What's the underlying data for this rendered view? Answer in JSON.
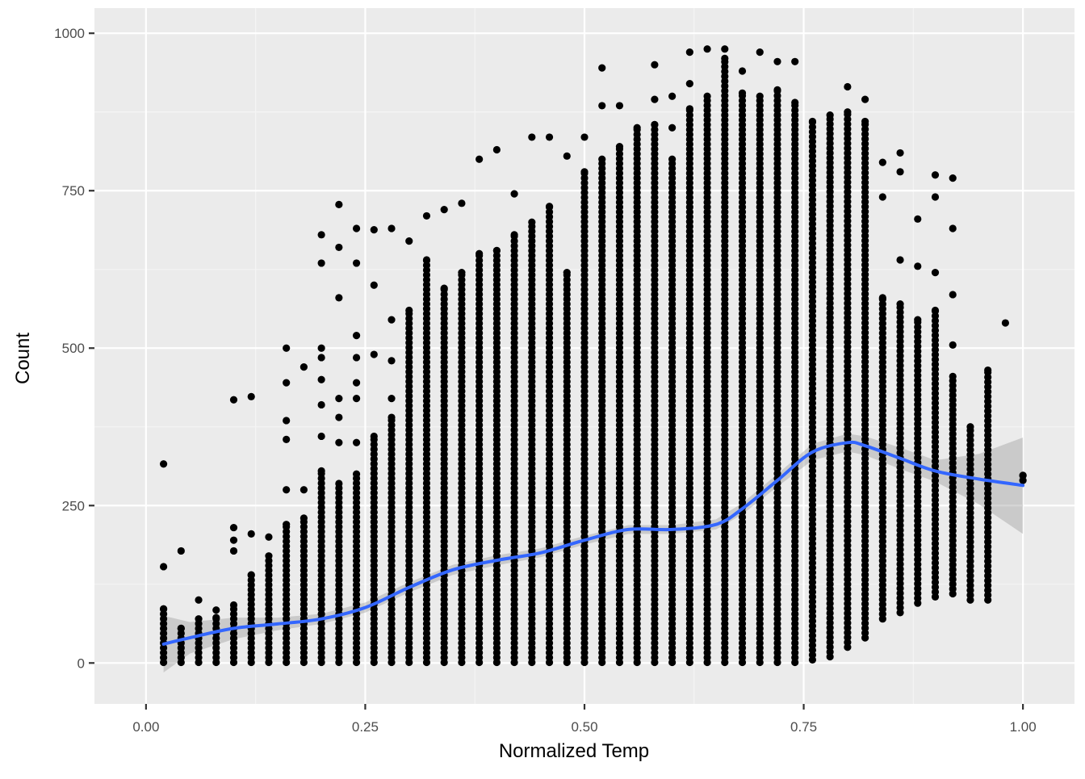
{
  "chart_data": {
    "type": "scatter",
    "title": "",
    "xlabel": "Normalized Temp",
    "ylabel": "Count",
    "xlim": [
      -0.0588,
      1.0588
    ],
    "ylim": [
      -65,
      1040
    ],
    "x_ticks": [
      0.0,
      0.25,
      0.5,
      0.75,
      1.0
    ],
    "x_tick_labels": [
      "0.00",
      "0.25",
      "0.50",
      "0.75",
      "1.00"
    ],
    "y_ticks": [
      0,
      250,
      500,
      750,
      1000
    ],
    "y_tick_labels": [
      "0",
      "250",
      "500",
      "750",
      "1000"
    ],
    "grid": true,
    "legend": "none",
    "colors": {
      "panel_background": "#ebebeb",
      "grid_major": "#ffffff",
      "grid_minor": "#f5f5f5",
      "points": "#000000",
      "smooth_line": "#3366ff",
      "confidence_band": "#999999"
    },
    "point_columns": [
      {
        "x": 0.02,
        "ymin": 1,
        "ymax": 86,
        "outliers": [
          153,
          316
        ]
      },
      {
        "x": 0.04,
        "ymin": 1,
        "ymax": 55,
        "outliers": [
          178
        ]
      },
      {
        "x": 0.06,
        "ymin": 1,
        "ymax": 70,
        "outliers": [
          100
        ]
      },
      {
        "x": 0.08,
        "ymin": 1,
        "ymax": 72,
        "outliers": [
          84
        ]
      },
      {
        "x": 0.1,
        "ymin": 1,
        "ymax": 92,
        "outliers": [
          178,
          195,
          215,
          418
        ]
      },
      {
        "x": 0.12,
        "ymin": 1,
        "ymax": 140,
        "outliers": [
          205,
          423
        ]
      },
      {
        "x": 0.14,
        "ymin": 1,
        "ymax": 170,
        "outliers": [
          200
        ]
      },
      {
        "x": 0.16,
        "ymin": 1,
        "ymax": 220,
        "outliers": [
          275,
          355,
          385,
          445,
          500
        ]
      },
      {
        "x": 0.18,
        "ymin": 1,
        "ymax": 230,
        "outliers": [
          275,
          470
        ]
      },
      {
        "x": 0.2,
        "ymin": 1,
        "ymax": 305,
        "outliers": [
          360,
          410,
          450,
          485,
          500,
          635,
          680
        ]
      },
      {
        "x": 0.22,
        "ymin": 1,
        "ymax": 285,
        "outliers": [
          350,
          390,
          420,
          580,
          660,
          728
        ]
      },
      {
        "x": 0.24,
        "ymin": 1,
        "ymax": 300,
        "outliers": [
          350,
          420,
          445,
          485,
          520,
          635,
          690
        ]
      },
      {
        "x": 0.26,
        "ymin": 1,
        "ymax": 360,
        "outliers": [
          490,
          600,
          688
        ]
      },
      {
        "x": 0.28,
        "ymin": 1,
        "ymax": 390,
        "outliers": [
          420,
          480,
          545,
          690
        ]
      },
      {
        "x": 0.3,
        "ymin": 1,
        "ymax": 560,
        "outliers": [
          670
        ]
      },
      {
        "x": 0.32,
        "ymin": 1,
        "ymax": 640,
        "outliers": [
          710
        ]
      },
      {
        "x": 0.34,
        "ymin": 1,
        "ymax": 595,
        "outliers": [
          720
        ]
      },
      {
        "x": 0.36,
        "ymin": 1,
        "ymax": 620,
        "outliers": [
          730
        ]
      },
      {
        "x": 0.38,
        "ymin": 1,
        "ymax": 650,
        "outliers": [
          800
        ]
      },
      {
        "x": 0.4,
        "ymin": 1,
        "ymax": 655,
        "outliers": [
          815
        ]
      },
      {
        "x": 0.42,
        "ymin": 1,
        "ymax": 680,
        "outliers": [
          745
        ]
      },
      {
        "x": 0.44,
        "ymin": 1,
        "ymax": 700,
        "outliers": [
          835
        ]
      },
      {
        "x": 0.46,
        "ymin": 1,
        "ymax": 725,
        "outliers": [
          835
        ]
      },
      {
        "x": 0.48,
        "ymin": 1,
        "ymax": 620,
        "outliers": [
          805
        ]
      },
      {
        "x": 0.5,
        "ymin": 1,
        "ymax": 780,
        "outliers": [
          835
        ]
      },
      {
        "x": 0.52,
        "ymin": 1,
        "ymax": 800,
        "outliers": [
          885,
          945
        ]
      },
      {
        "x": 0.54,
        "ymin": 1,
        "ymax": 820,
        "outliers": [
          885
        ]
      },
      {
        "x": 0.56,
        "ymin": 1,
        "ymax": 850,
        "outliers": []
      },
      {
        "x": 0.58,
        "ymin": 1,
        "ymax": 855,
        "outliers": [
          895,
          950
        ]
      },
      {
        "x": 0.6,
        "ymin": 1,
        "ymax": 800,
        "outliers": [
          850,
          900
        ]
      },
      {
        "x": 0.62,
        "ymin": 1,
        "ymax": 880,
        "outliers": [
          920,
          970
        ]
      },
      {
        "x": 0.64,
        "ymin": 1,
        "ymax": 900,
        "outliers": [
          975
        ]
      },
      {
        "x": 0.66,
        "ymin": 1,
        "ymax": 960,
        "outliers": [
          975
        ]
      },
      {
        "x": 0.68,
        "ymin": 1,
        "ymax": 905,
        "outliers": [
          940
        ]
      },
      {
        "x": 0.7,
        "ymin": 1,
        "ymax": 900,
        "outliers": [
          970
        ]
      },
      {
        "x": 0.72,
        "ymin": 1,
        "ymax": 910,
        "outliers": [
          955
        ]
      },
      {
        "x": 0.74,
        "ymin": 1,
        "ymax": 890,
        "outliers": [
          955
        ]
      },
      {
        "x": 0.76,
        "ymin": 5,
        "ymax": 860,
        "outliers": []
      },
      {
        "x": 0.78,
        "ymin": 10,
        "ymax": 870,
        "outliers": []
      },
      {
        "x": 0.8,
        "ymin": 25,
        "ymax": 875,
        "outliers": [
          915
        ]
      },
      {
        "x": 0.82,
        "ymin": 40,
        "ymax": 860,
        "outliers": [
          895
        ]
      },
      {
        "x": 0.84,
        "ymin": 70,
        "ymax": 580,
        "outliers": [
          740,
          795
        ]
      },
      {
        "x": 0.86,
        "ymin": 80,
        "ymax": 570,
        "outliers": [
          640,
          780,
          810
        ]
      },
      {
        "x": 0.88,
        "ymin": 95,
        "ymax": 545,
        "outliers": [
          630,
          705
        ]
      },
      {
        "x": 0.9,
        "ymin": 105,
        "ymax": 560,
        "outliers": [
          620,
          740,
          775
        ]
      },
      {
        "x": 0.92,
        "ymin": 110,
        "ymax": 455,
        "outliers": [
          505,
          585,
          690,
          770
        ]
      },
      {
        "x": 0.94,
        "ymin": 100,
        "ymax": 375,
        "outliers": []
      },
      {
        "x": 0.96,
        "ymin": 100,
        "ymax": 465,
        "outliers": []
      },
      {
        "x": 0.98,
        "ymin": 540,
        "ymax": 540,
        "outliers": []
      },
      {
        "x": 1.0,
        "ymin": 290,
        "ymax": 298,
        "outliers": []
      }
    ],
    "smooth_line": {
      "x": [
        0.02,
        0.05,
        0.1,
        0.15,
        0.2,
        0.25,
        0.3,
        0.35,
        0.4,
        0.45,
        0.5,
        0.55,
        0.6,
        0.65,
        0.68,
        0.72,
        0.76,
        0.8,
        0.82,
        0.86,
        0.9,
        0.95,
        1.0
      ],
      "y": [
        30,
        40,
        55,
        62,
        70,
        88,
        120,
        148,
        163,
        175,
        195,
        212,
        212,
        220,
        245,
        290,
        335,
        350,
        345,
        325,
        305,
        292,
        282
      ],
      "ci_lower": [
        -15,
        15,
        38,
        52,
        62,
        80,
        112,
        140,
        155,
        168,
        188,
        205,
        205,
        212,
        236,
        280,
        322,
        336,
        330,
        308,
        288,
        252,
        205
      ],
      "ci_upper": [
        75,
        65,
        72,
        72,
        78,
        96,
        128,
        156,
        171,
        182,
        202,
        219,
        219,
        228,
        254,
        300,
        348,
        364,
        360,
        342,
        322,
        332,
        358
      ]
    }
  }
}
